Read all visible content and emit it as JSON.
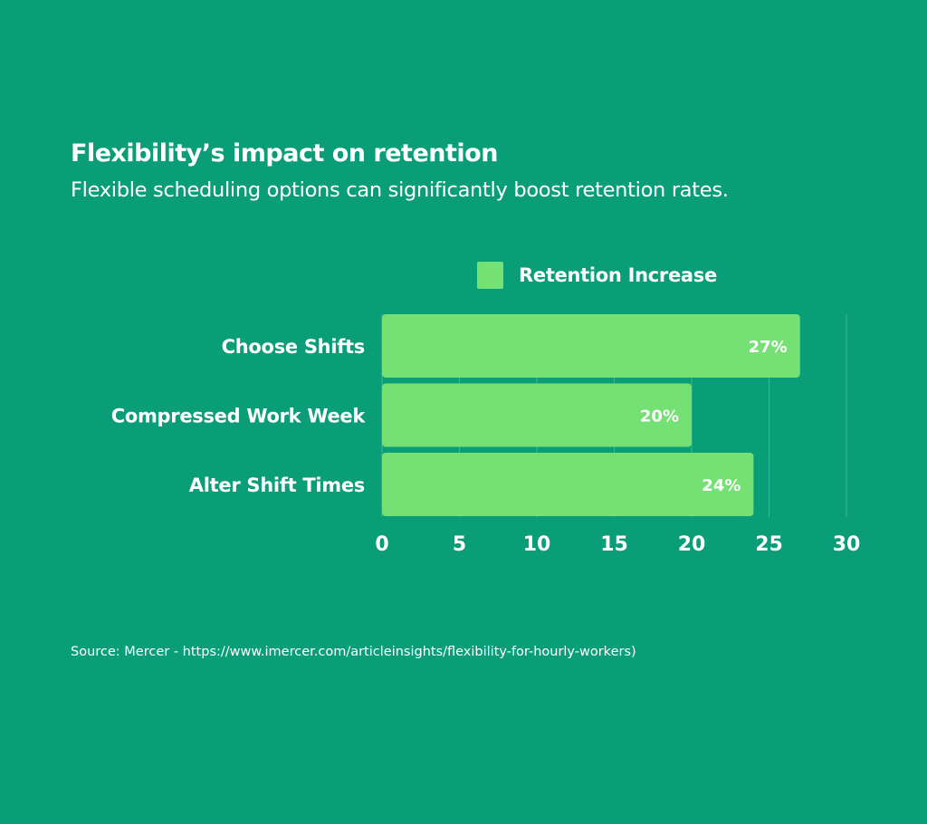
{
  "chart_data": {
    "type": "bar",
    "orientation": "horizontal",
    "title": "Flexibility’s impact on retention",
    "subtitle": "Flexible scheduling options can significantly boost retention rates.",
    "categories": [
      "Choose Shifts",
      "Compressed Work Week",
      "Alter Shift Times"
    ],
    "series": [
      {
        "name": "Retention Increase",
        "values": [
          27,
          20,
          24
        ],
        "labels": [
          "27%",
          "20%",
          "24%"
        ],
        "color": "#75e074"
      }
    ],
    "xlim": [
      0,
      30
    ],
    "xticks": [
      "0",
      "5",
      "10",
      "15",
      "20",
      "25",
      "30"
    ],
    "grid": true,
    "legend": "top",
    "source": "Source: Mercer - https://www.imercer.com/articleinsights/flexibility-for-hourly-workers)"
  },
  "colors": {
    "background": "#0a9e78",
    "bar": "#75e074",
    "grid": "#3fb592"
  }
}
